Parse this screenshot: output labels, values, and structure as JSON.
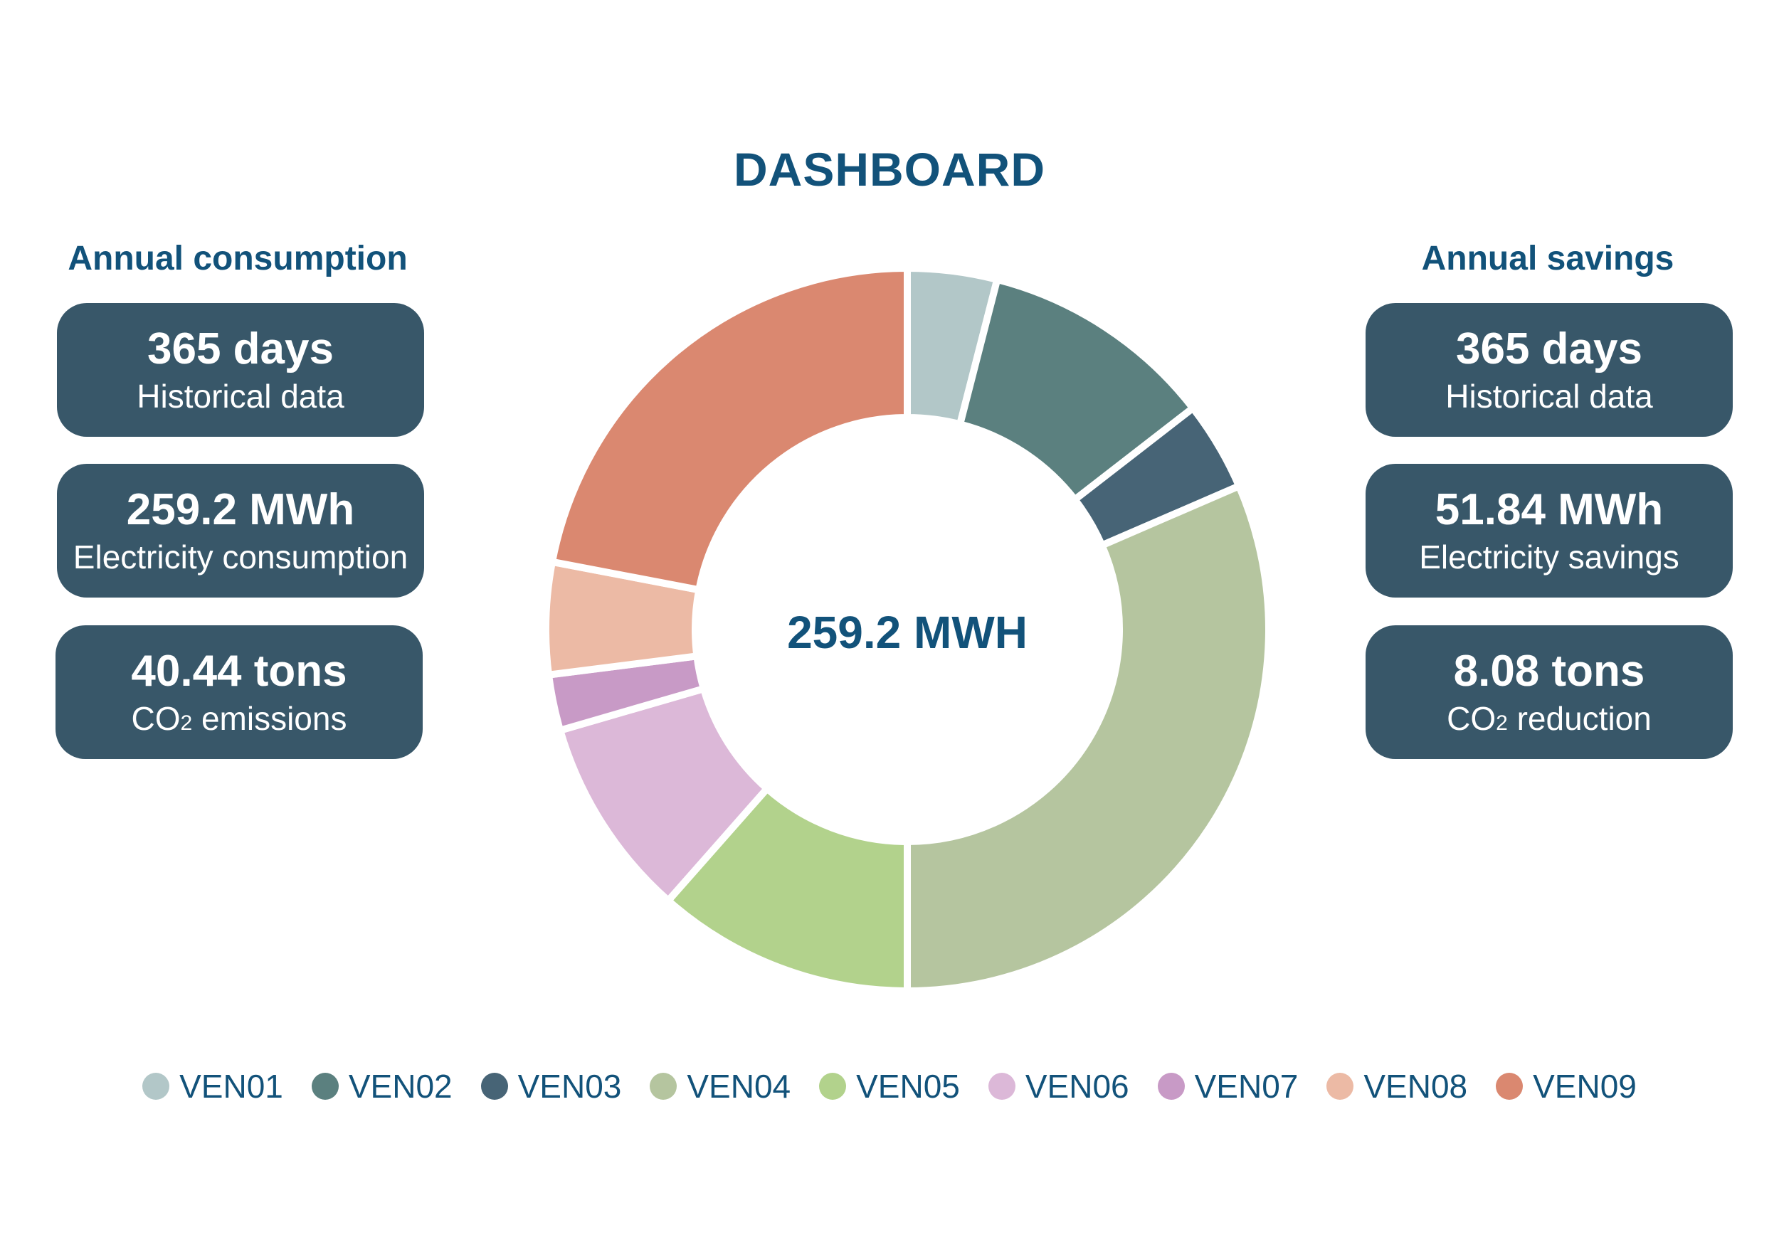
{
  "title": "DASHBOARD",
  "left_panel": {
    "heading": "Annual consumption",
    "cards": [
      {
        "value": "365 days",
        "label": "Historical data"
      },
      {
        "value": "259.2 MWh",
        "label": "Electricity consumption"
      },
      {
        "value": "40.44 tons",
        "label_main": "CO",
        "label_sub": "2",
        "label_rest": " emissions"
      }
    ]
  },
  "right_panel": {
    "heading": "Annual savings",
    "cards": [
      {
        "value": "365 days",
        "label": "Historical data"
      },
      {
        "value": "51.84 MWh",
        "label": "Electricity savings"
      },
      {
        "value": "8.08 tons",
        "label_main": "CO",
        "label_sub": "2",
        "label_rest": " reduction"
      }
    ]
  },
  "colors": {
    "title": "#12527a",
    "card_bg": "#385769"
  },
  "chart_data": {
    "type": "pie",
    "variant": "donut",
    "center_label": "259.2 MWH",
    "categories": [
      "VEN01",
      "VEN02",
      "VEN03",
      "VEN04",
      "VEN05",
      "VEN06",
      "VEN07",
      "VEN08",
      "VEN09"
    ],
    "values": [
      4.0,
      10.5,
      4.0,
      31.5,
      11.5,
      9.0,
      2.5,
      5.0,
      22.0
    ],
    "colors": [
      "#b2c7c8",
      "#5b807f",
      "#476476",
      "#b5c59f",
      "#b2d28c",
      "#dcb8d8",
      "#c89ac6",
      "#ecbaa5",
      "#da8870"
    ],
    "legend_position": "bottom"
  }
}
